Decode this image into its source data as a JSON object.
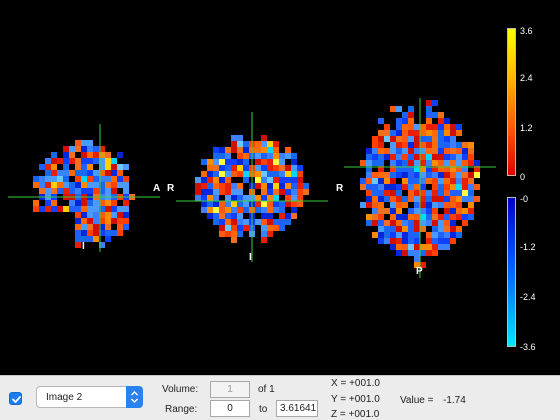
{
  "views": [
    {
      "name": "sagittal",
      "cx": 85,
      "cy": 195,
      "rx": 52,
      "ry": 55,
      "cut": "left",
      "cross_h": {
        "x1": 8,
        "x2": 160,
        "y": 197
      },
      "cross_v": {
        "x": 100,
        "y1": 124,
        "y2": 252
      },
      "labels": [
        {
          "text": "A",
          "x": 153,
          "y": 183
        },
        {
          "text": "I",
          "x": 82,
          "y": 241
        }
      ]
    },
    {
      "name": "coronal",
      "cx": 252,
      "cy": 190,
      "rx": 57,
      "ry": 55,
      "cut": "none",
      "cross_h": {
        "x1": 176,
        "x2": 328,
        "y": 201
      },
      "cross_v": {
        "x": 252,
        "y1": 112,
        "y2": 262
      },
      "labels": [
        {
          "text": "R",
          "x": 167,
          "y": 183
        },
        {
          "text": "I",
          "x": 249,
          "y": 252
        }
      ]
    },
    {
      "name": "axial",
      "cx": 420,
      "cy": 183,
      "rx": 60,
      "ry": 83,
      "cut": "none",
      "cross_h": {
        "x1": 344,
        "x2": 496,
        "y": 167
      },
      "cross_v": {
        "x": 420,
        "y1": 98,
        "y2": 278
      },
      "labels": [
        {
          "text": "R",
          "x": 336,
          "y": 183
        },
        {
          "text": "P",
          "x": 416,
          "y": 266
        }
      ]
    }
  ],
  "colorbar": {
    "positive_ticks": [
      "3.6",
      "2.4",
      "1.2",
      "0"
    ],
    "negative_ticks": [
      "-0",
      "-1.2",
      "-2.4",
      "-3.6"
    ]
  },
  "controls": {
    "image_select": "Image 2",
    "volume_label": "Volume:",
    "volume_value": "1",
    "volume_of": "of 1",
    "range_label": "Range:",
    "range_min": "0",
    "range_to": "to",
    "range_max": "3.61641",
    "x_coord": "X = +001.0",
    "y_coord": "Y = +001.0",
    "z_coord": "Z = +001.0",
    "value_label": "Value =",
    "value": "-1.74"
  }
}
